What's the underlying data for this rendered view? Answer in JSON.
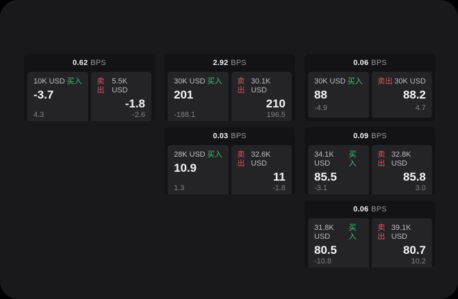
{
  "labels": {
    "bps_suffix": "BPS",
    "buy": "买入",
    "sell": "卖出"
  },
  "colors": {
    "page_outside": "#000000",
    "surface_bg": "#19191b",
    "card_bg": "#131315",
    "panel_bg": "#242427",
    "text_primary": "#f5f5f6",
    "text_secondary": "#bdbdc3",
    "text_dim": "#808086",
    "buy_green": "#3cc472",
    "sell_red": "#e04f63"
  },
  "cards": [
    {
      "bps": "0.62",
      "buy": {
        "amount": "10K USD",
        "value": "-3.7",
        "sub": "4.3"
      },
      "sell": {
        "amount": "5.5K USD",
        "value": "-1.8",
        "sub": "-2.6"
      }
    },
    {
      "bps": "2.92",
      "buy": {
        "amount": "30K USD",
        "value": "201",
        "sub": "-188.1"
      },
      "sell": {
        "amount": "30.1K USD",
        "value": "210",
        "sub": "196.5"
      }
    },
    {
      "bps": "0.06",
      "buy": {
        "amount": "30K USD",
        "value": "88",
        "sub": "-4.9"
      },
      "sell": {
        "amount": "30K USD",
        "value": "88.2",
        "sub": "4.7"
      }
    },
    {
      "bps": "0.03",
      "buy": {
        "amount": "28K USD",
        "value": "10.9",
        "sub": "1.3"
      },
      "sell": {
        "amount": "32.6K USD",
        "value": "11",
        "sub": "-1.8"
      }
    },
    {
      "bps": "0.09",
      "buy": {
        "amount": "34.1K USD",
        "value": "85.5",
        "sub": "-3.1"
      },
      "sell": {
        "amount": "32.8K USD",
        "value": "85.8",
        "sub": "3.0"
      }
    },
    {
      "bps": "0.06",
      "buy": {
        "amount": "31.8K USD",
        "value": "80.5",
        "sub": "-10.8"
      },
      "sell": {
        "amount": "39.1K USD",
        "value": "80.7",
        "sub": "10.2"
      }
    }
  ]
}
